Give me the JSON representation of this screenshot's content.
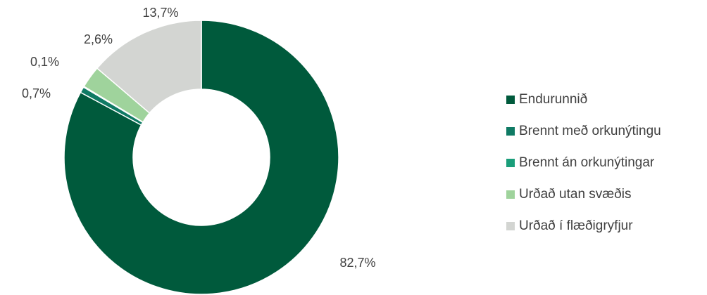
{
  "chart_data": {
    "type": "pie",
    "variant": "donut",
    "title": "",
    "legend_position": "right",
    "slices": [
      {
        "name": "Endurunnið",
        "value": 82.7,
        "label": "82,7%",
        "color": "#005a3c"
      },
      {
        "name": "Brennt með orkunýtingu",
        "value": 0.7,
        "label": "0,7%",
        "color": "#0f7a64"
      },
      {
        "name": "Brennt án orkunýtingar",
        "value": 0.1,
        "label": "0,1%",
        "color": "#1a9e7a"
      },
      {
        "name": "Urðað utan svæðis",
        "value": 2.6,
        "label": "2,6%",
        "color": "#9fd39c"
      },
      {
        "name": "Urðað í flæðigryfjur",
        "value": 13.7,
        "label": "13,7%",
        "color": "#d3d5d2"
      }
    ]
  }
}
